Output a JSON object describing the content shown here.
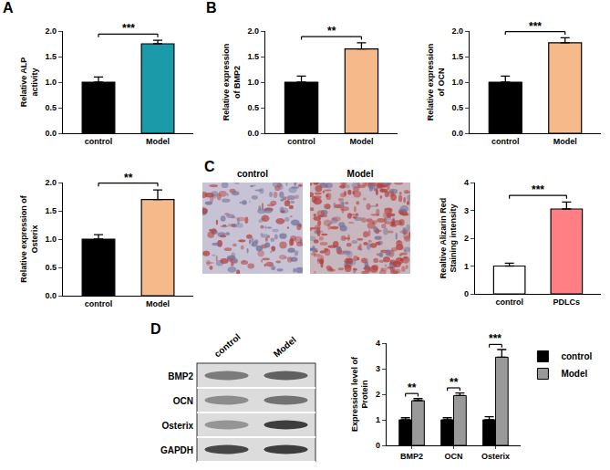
{
  "panel_labels": [
    "A",
    "B",
    "C",
    "D"
  ],
  "micrographs": {
    "labels": [
      "control",
      "Model"
    ]
  },
  "western_blot": {
    "columns": [
      "control",
      "Model"
    ],
    "rows": [
      "BMP2",
      "OCN",
      "Osterix",
      "GAPDH"
    ]
  },
  "chart_data": [
    {
      "type": "bar",
      "y_label": "Relative ALP activity",
      "categories": [
        "control",
        "Model"
      ],
      "values": [
        1.0,
        1.75
      ],
      "errors": [
        0.1,
        0.07
      ],
      "colors": [
        "#000000",
        "#1b9aaa"
      ],
      "ylim": [
        0,
        2
      ],
      "yticks": [
        {
          "value": 0,
          "label": "0.0"
        },
        {
          "value": 0.5,
          "label": "0.5"
        },
        {
          "value": 1,
          "label": "1.0"
        },
        {
          "value": 1.5,
          "label": "1.5"
        },
        {
          "value": 2,
          "label": "2.0"
        }
      ],
      "grid": false,
      "annotations": [
        {
          "text": "***",
          "from": 0,
          "to": 1
        }
      ]
    },
    {
      "type": "bar",
      "y_label": "Relative expression of BMP2",
      "categories": [
        "control",
        "Model"
      ],
      "values": [
        1.0,
        1.65
      ],
      "errors": [
        0.12,
        0.12
      ],
      "colors": [
        "#000000",
        "#f6b98a"
      ],
      "ylim": [
        0,
        2
      ],
      "yticks": [
        {
          "value": 0,
          "label": "0.0"
        },
        {
          "value": 0.5,
          "label": "0.5"
        },
        {
          "value": 1,
          "label": "1.0"
        },
        {
          "value": 1.5,
          "label": "1.5"
        },
        {
          "value": 2,
          "label": "2.0"
        }
      ],
      "grid": false,
      "annotations": [
        {
          "text": "**",
          "from": 0,
          "to": 1
        }
      ]
    },
    {
      "type": "bar",
      "y_label": "Relative expression of OCN",
      "categories": [
        "control",
        "Model"
      ],
      "values": [
        1.0,
        1.77
      ],
      "errors": [
        0.12,
        0.1
      ],
      "colors": [
        "#000000",
        "#f6b98a"
      ],
      "ylim": [
        0,
        2
      ],
      "yticks": [
        {
          "value": 0,
          "label": "0.0"
        },
        {
          "value": 0.5,
          "label": "0.5"
        },
        {
          "value": 1,
          "label": "1.0"
        },
        {
          "value": 1.5,
          "label": "1.5"
        },
        {
          "value": 2,
          "label": "2.0"
        }
      ],
      "grid": false,
      "annotations": [
        {
          "text": "***",
          "from": 0,
          "to": 1
        }
      ]
    },
    {
      "type": "bar",
      "y_label": "Relative expression of Osterix",
      "categories": [
        "control",
        "Model"
      ],
      "values": [
        1.0,
        1.7
      ],
      "errors": [
        0.08,
        0.17
      ],
      "colors": [
        "#000000",
        "#f6b98a"
      ],
      "ylim": [
        0,
        2
      ],
      "yticks": [
        {
          "value": 0,
          "label": "0.0"
        },
        {
          "value": 0.5,
          "label": "0.5"
        },
        {
          "value": 1,
          "label": "1.0"
        },
        {
          "value": 1.5,
          "label": "1.5"
        },
        {
          "value": 2,
          "label": "2.0"
        }
      ],
      "grid": false,
      "annotations": [
        {
          "text": "**",
          "from": 0,
          "to": 1
        }
      ]
    },
    {
      "type": "bar",
      "y_label": "Realtive Alizarin Red Staining intensity",
      "categories": [
        "control",
        "PDLCs"
      ],
      "values": [
        1.0,
        3.05
      ],
      "errors": [
        0.1,
        0.25
      ],
      "colors": [
        "#ffffff",
        "#ff7f85"
      ],
      "ylim": [
        0,
        4
      ],
      "yticks": [
        0,
        1,
        2,
        3,
        4
      ],
      "grid": false,
      "annotations": [
        {
          "text": "***",
          "from": 0,
          "to": 1
        }
      ]
    },
    {
      "type": "bar",
      "y_label": "Expression level of Protein",
      "categories": [
        "BMP2",
        "OCN",
        "Osterix"
      ],
      "series": [
        {
          "name": "control",
          "color": "#000000",
          "values": [
            1.0,
            1.0,
            1.0
          ],
          "errors": [
            0.08,
            0.08,
            0.12
          ]
        },
        {
          "name": "Model",
          "color": "#999999",
          "values": [
            1.75,
            1.95,
            3.45
          ],
          "errors": [
            0.08,
            0.1,
            0.3
          ]
        }
      ],
      "ylim": [
        0,
        4
      ],
      "yticks": [
        0,
        1,
        2,
        3,
        4
      ],
      "grid": false,
      "legend": "right",
      "annotations": [
        {
          "text": "**",
          "category": 0
        },
        {
          "text": "**",
          "category": 1
        },
        {
          "text": "***",
          "category": 2
        }
      ]
    }
  ]
}
